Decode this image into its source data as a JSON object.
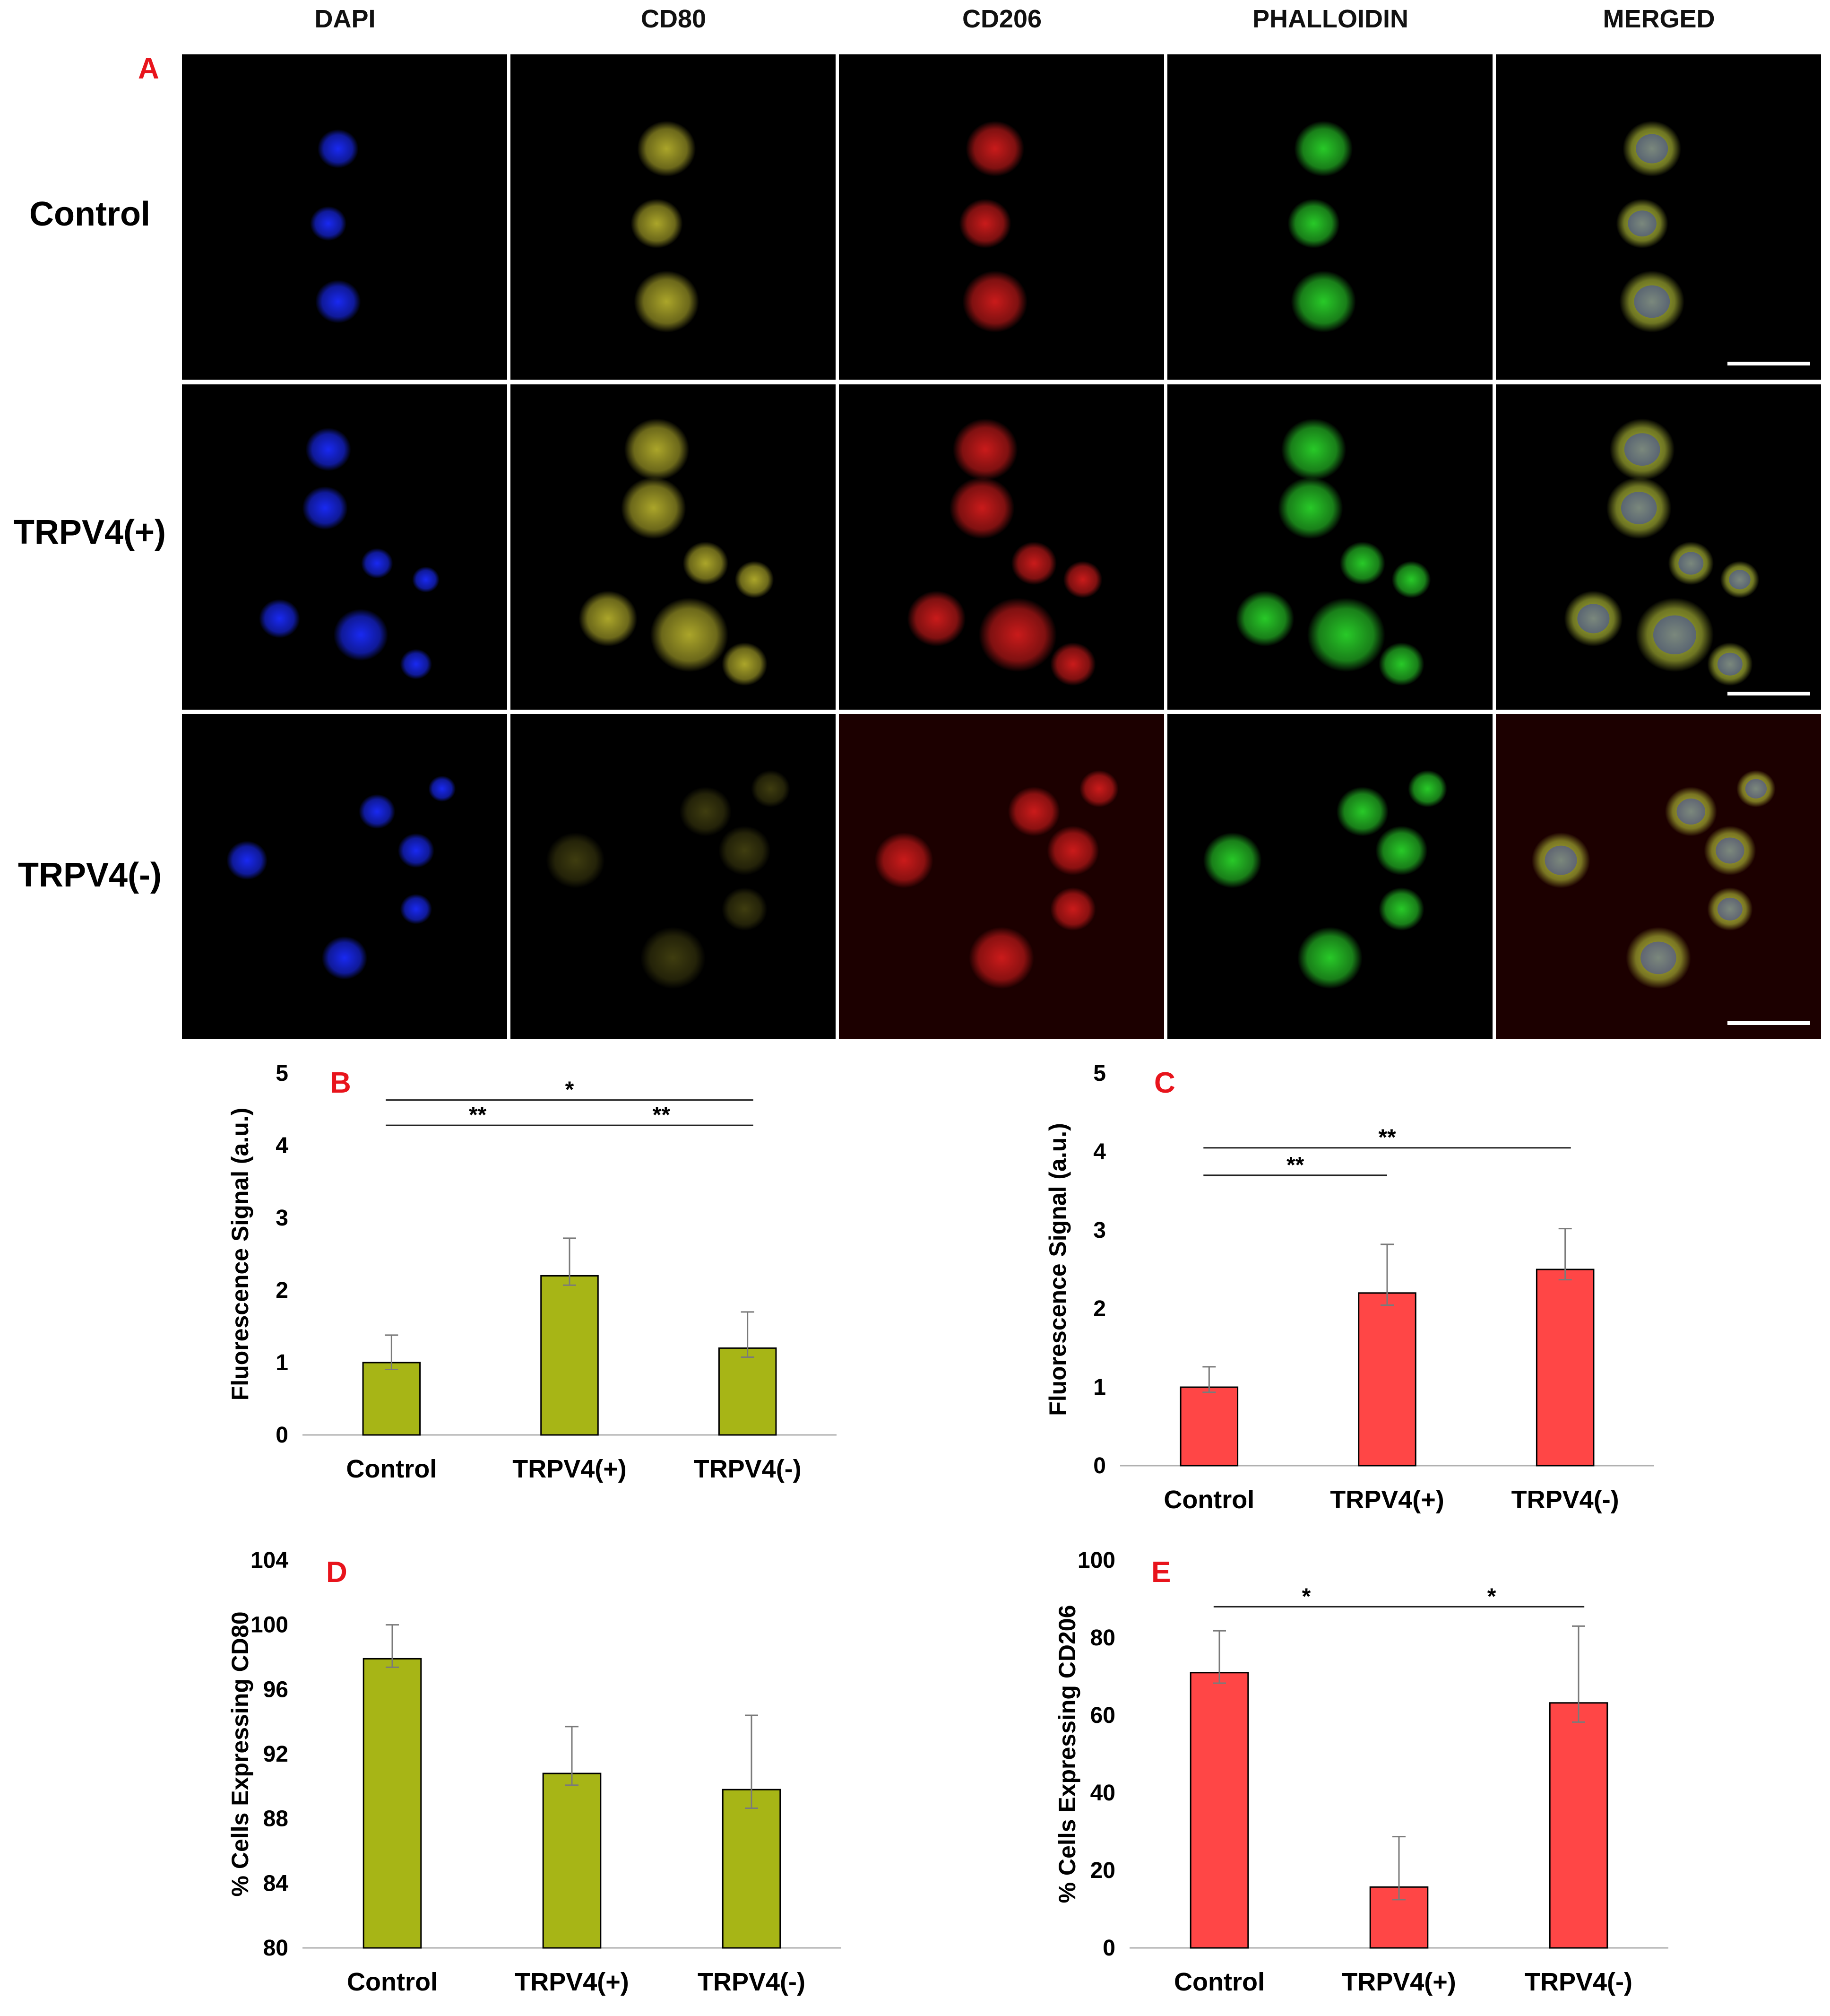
{
  "column_headers": [
    "DAPI",
    "CD80",
    "CD206",
    "PHALLOIDIN",
    "MERGED"
  ],
  "row_labels": [
    "Control",
    "TRPV4(+)",
    "TRPV4(-)"
  ],
  "panel_letters": {
    "A": "A",
    "B": "B",
    "C": "C",
    "D": "D",
    "E": "E"
  },
  "colors": {
    "panel_letter": "#e8141c",
    "olive_bar": "#a7b516",
    "red_bar": "#ff4646",
    "dapi": "#1a2bff",
    "cd80": "#b4ae2c",
    "cd206": "#d41c1c",
    "phalloidin": "#2ad42a"
  },
  "chart_data": [
    {
      "id": "B",
      "type": "bar",
      "categories": [
        "Control",
        "TRPV4(+)",
        "TRPV4(-)"
      ],
      "values": [
        1.0,
        2.2,
        1.2
      ],
      "errors": [
        0.38,
        0.52,
        0.5
      ],
      "ylabel": "Fluorescence  Signal (a.u.)",
      "ylim": [
        0,
        5
      ],
      "yticks": [
        "0",
        "1",
        "2",
        "3",
        "4",
        "5"
      ],
      "bar_color": "#a7b516",
      "significance": [
        {
          "from": 0,
          "to": 2,
          "label": "*",
          "level": 4.63
        },
        {
          "from": 0,
          "to": 1,
          "label": "**",
          "level": 4.28
        },
        {
          "from": 1,
          "to": 2,
          "label": "**",
          "level": 4.28
        }
      ]
    },
    {
      "id": "C",
      "type": "bar",
      "categories": [
        "Control",
        "TRPV4(+)",
        "TRPV4(-)"
      ],
      "values": [
        1.0,
        2.2,
        2.5
      ],
      "errors": [
        0.26,
        0.62,
        0.52
      ],
      "ylabel": "Fluorescence Signal (a.u.)",
      "ylim": [
        0,
        5
      ],
      "yticks": [
        "0",
        "1",
        "2",
        "3",
        "4",
        "5"
      ],
      "bar_color": "#ff4646",
      "significance": [
        {
          "from": 0,
          "to": 2,
          "label": "**",
          "level": 4.05
        },
        {
          "from": 0,
          "to": 1,
          "label": "**",
          "level": 3.7
        }
      ]
    },
    {
      "id": "D",
      "type": "bar",
      "categories": [
        "Control",
        "TRPV4(+)",
        "TRPV4(-)"
      ],
      "values": [
        97.9,
        90.8,
        89.8
      ],
      "errors": [
        2.1,
        2.9,
        4.6
      ],
      "ylabel": "% Cells Expressing CD80",
      "ylim": [
        80,
        104
      ],
      "yticks": [
        "80",
        "84",
        "88",
        "92",
        "96",
        "100",
        "104"
      ],
      "bar_color": "#a7b516",
      "significance": []
    },
    {
      "id": "E",
      "type": "bar",
      "categories": [
        "Control",
        "TRPV4(+)",
        "TRPV4(-)"
      ],
      "values": [
        71.0,
        15.7,
        63.2
      ],
      "errors": [
        10.8,
        13.0,
        19.8
      ],
      "ylabel": "% Cells Expressing CD206",
      "ylim": [
        0,
        100
      ],
      "yticks": [
        "0",
        "20",
        "40",
        "60",
        "80",
        "100"
      ],
      "bar_color": "#ff4646",
      "significance": [
        {
          "from": 0,
          "to": 1,
          "label": "*",
          "level": 88
        },
        {
          "from": 1,
          "to": 2,
          "label": "*",
          "level": 88
        }
      ]
    }
  ]
}
